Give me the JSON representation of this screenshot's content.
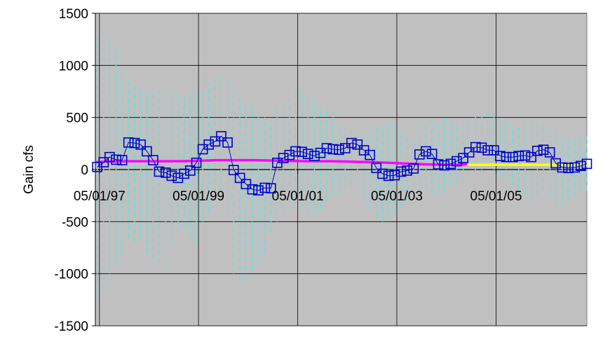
{
  "chart_data": {
    "type": "line",
    "title": "",
    "xlabel": "",
    "ylabel": "Gain cfs",
    "ylim": [
      -1500,
      1500
    ],
    "yticks": [
      1500,
      1000,
      500,
      0,
      -500,
      -1000,
      -1500
    ],
    "xlim": [
      "1997-04-01",
      "2007-03-01"
    ],
    "xticks": [
      {
        "date": "1997-05-01",
        "label": "05/01/97"
      },
      {
        "date": "1999-05-01",
        "label": "05/01/99"
      },
      {
        "date": "2001-05-01",
        "label": "05/01/01"
      },
      {
        "date": "2003-05-01",
        "label": "05/01/03"
      },
      {
        "date": "2005-05-01",
        "label": "05/01/05"
      }
    ],
    "grid": true,
    "plot_background": "#c0c0c0",
    "series": [
      {
        "type": "markers",
        "marker": "square",
        "color": "#0000cc",
        "points": [
          [
            "1997-04-15",
            25
          ],
          [
            "1997-06-01",
            70
          ],
          [
            "1997-07-15",
            120
          ],
          [
            "1997-09-01",
            95
          ],
          [
            "1997-10-15",
            90
          ],
          [
            "1997-12-01",
            260
          ],
          [
            "1998-01-15",
            255
          ],
          [
            "1998-03-01",
            240
          ],
          [
            "1998-04-15",
            175
          ],
          [
            "1998-06-01",
            90
          ],
          [
            "1998-07-15",
            -20
          ],
          [
            "1998-09-01",
            -30
          ],
          [
            "1998-10-15",
            -60
          ],
          [
            "1998-12-01",
            -80
          ],
          [
            "1999-01-15",
            -40
          ],
          [
            "1999-03-01",
            -10
          ],
          [
            "1999-04-15",
            65
          ],
          [
            "1999-06-01",
            195
          ],
          [
            "1999-07-15",
            240
          ],
          [
            "1999-09-01",
            270
          ],
          [
            "1999-10-15",
            320
          ],
          [
            "1999-12-01",
            260
          ],
          [
            "2000-01-15",
            -5
          ],
          [
            "2000-03-01",
            -80
          ],
          [
            "2000-04-15",
            -140
          ],
          [
            "2000-06-01",
            -190
          ],
          [
            "2000-07-15",
            -200
          ],
          [
            "2000-09-01",
            -175
          ],
          [
            "2000-10-15",
            -180
          ],
          [
            "2000-12-01",
            65
          ],
          [
            "2001-01-15",
            110
          ],
          [
            "2001-03-01",
            140
          ],
          [
            "2001-04-15",
            175
          ],
          [
            "2001-06-01",
            170
          ],
          [
            "2001-07-15",
            150
          ],
          [
            "2001-09-01",
            130
          ],
          [
            "2001-10-15",
            160
          ],
          [
            "2001-12-01",
            205
          ],
          [
            "2002-01-15",
            195
          ],
          [
            "2002-03-01",
            190
          ],
          [
            "2002-04-15",
            205
          ],
          [
            "2002-06-01",
            255
          ],
          [
            "2002-07-15",
            240
          ],
          [
            "2002-09-01",
            185
          ],
          [
            "2002-10-15",
            140
          ],
          [
            "2002-12-01",
            15
          ],
          [
            "2003-01-15",
            -40
          ],
          [
            "2003-03-01",
            -60
          ],
          [
            "2003-04-15",
            -55
          ],
          [
            "2003-06-01",
            -20
          ],
          [
            "2003-07-15",
            -10
          ],
          [
            "2003-09-01",
            10
          ],
          [
            "2003-10-15",
            145
          ],
          [
            "2003-12-01",
            175
          ],
          [
            "2004-01-15",
            150
          ],
          [
            "2004-03-01",
            50
          ],
          [
            "2004-04-15",
            40
          ],
          [
            "2004-06-01",
            55
          ],
          [
            "2004-07-15",
            80
          ],
          [
            "2004-09-01",
            110
          ],
          [
            "2004-10-15",
            165
          ],
          [
            "2004-12-01",
            215
          ],
          [
            "2005-01-15",
            210
          ],
          [
            "2005-03-01",
            185
          ],
          [
            "2005-04-15",
            185
          ],
          [
            "2005-06-01",
            130
          ],
          [
            "2005-07-15",
            120
          ],
          [
            "2005-09-01",
            120
          ],
          [
            "2005-10-15",
            130
          ],
          [
            "2005-12-01",
            135
          ],
          [
            "2006-01-15",
            120
          ],
          [
            "2006-03-01",
            180
          ],
          [
            "2006-04-15",
            190
          ],
          [
            "2006-06-01",
            165
          ],
          [
            "2006-07-15",
            60
          ],
          [
            "2006-09-01",
            20
          ],
          [
            "2006-10-15",
            15
          ],
          [
            "2006-12-01",
            20
          ],
          [
            "2007-01-15",
            35
          ],
          [
            "2007-03-01",
            55
          ]
        ]
      },
      {
        "type": "line",
        "color": "#ff00ff",
        "points": [
          [
            "1997-04-01",
            70
          ],
          [
            "1997-07-01",
            78
          ],
          [
            "1998-01-01",
            80
          ],
          [
            "1998-06-01",
            80
          ],
          [
            "1999-01-01",
            80
          ],
          [
            "1999-06-01",
            85
          ],
          [
            "1999-09-01",
            90
          ],
          [
            "2000-06-01",
            90
          ],
          [
            "2001-01-01",
            85
          ],
          [
            "2001-07-01",
            80
          ],
          [
            "2002-01-01",
            80
          ],
          [
            "2002-06-01",
            75
          ],
          [
            "2002-12-01",
            70
          ],
          [
            "2003-06-01",
            60
          ],
          [
            "2003-12-01",
            50
          ],
          [
            "2004-06-01",
            45
          ],
          [
            "2004-10-01",
            50
          ]
        ]
      },
      {
        "type": "line",
        "color": "#ffff00",
        "points": [
          [
            "2004-10-01",
            45
          ],
          [
            "2007-03-01",
            45
          ]
        ]
      },
      {
        "type": "error_bars",
        "style": "dashed",
        "color": "#66e0e0",
        "bars": [
          [
            "1997-04-15",
            -1250,
            1300
          ],
          [
            "1997-06-01",
            -1150,
            1350
          ],
          [
            "1997-07-15",
            -1000,
            1250
          ],
          [
            "1997-09-01",
            -900,
            1150
          ],
          [
            "1997-10-15",
            -800,
            950
          ],
          [
            "1997-12-01",
            -650,
            880
          ],
          [
            "1998-01-15",
            -700,
            820
          ],
          [
            "1998-03-01",
            -650,
            800
          ],
          [
            "1998-04-15",
            -800,
            760
          ],
          [
            "1998-06-01",
            -850,
            760
          ],
          [
            "1998-07-15",
            -900,
            770
          ],
          [
            "1998-09-01",
            -930,
            750
          ],
          [
            "1998-10-15",
            -700,
            760
          ],
          [
            "1998-12-01",
            -600,
            720
          ],
          [
            "1999-01-15",
            -550,
            700
          ],
          [
            "1999-03-01",
            -650,
            740
          ],
          [
            "1999-04-15",
            -700,
            760
          ],
          [
            "1999-06-01",
            -500,
            750
          ],
          [
            "1999-07-15",
            -400,
            830
          ],
          [
            "1999-09-01",
            -300,
            880
          ],
          [
            "1999-10-15",
            -200,
            920
          ],
          [
            "1999-12-01",
            -400,
            860
          ],
          [
            "2000-01-15",
            -1000,
            780
          ],
          [
            "2000-03-01",
            -1050,
            700
          ],
          [
            "2000-04-15",
            -1050,
            650
          ],
          [
            "2000-06-01",
            -950,
            620
          ],
          [
            "2000-07-15",
            -900,
            560
          ],
          [
            "2000-09-01",
            -800,
            500
          ],
          [
            "2000-10-15",
            -600,
            460
          ],
          [
            "2000-12-01",
            -500,
            600
          ],
          [
            "2001-01-15",
            -450,
            640
          ],
          [
            "2001-03-01",
            -400,
            680
          ],
          [
            "2001-04-15",
            -350,
            740
          ],
          [
            "2001-06-01",
            -380,
            770
          ],
          [
            "2001-07-15",
            -400,
            740
          ],
          [
            "2001-09-01",
            -420,
            700
          ],
          [
            "2001-10-15",
            -380,
            620
          ],
          [
            "2001-12-01",
            -300,
            560
          ],
          [
            "2002-01-15",
            -250,
            500
          ],
          [
            "2002-03-01",
            -230,
            440
          ],
          [
            "2002-04-15",
            -180,
            420
          ],
          [
            "2002-06-01",
            -150,
            400
          ],
          [
            "2002-07-15",
            -200,
            380
          ],
          [
            "2002-09-01",
            -300,
            360
          ],
          [
            "2002-10-15",
            -400,
            380
          ],
          [
            "2002-12-01",
            -450,
            400
          ],
          [
            "2003-01-15",
            -500,
            420
          ],
          [
            "2003-03-01",
            -480,
            440
          ],
          [
            "2003-04-15",
            -420,
            420
          ],
          [
            "2003-06-01",
            -360,
            380
          ],
          [
            "2003-07-15",
            -300,
            340
          ],
          [
            "2003-09-01",
            -250,
            300
          ],
          [
            "2003-10-15",
            -200,
            380
          ],
          [
            "2003-12-01",
            -180,
            430
          ],
          [
            "2004-01-15",
            -220,
            460
          ],
          [
            "2004-03-01",
            -250,
            480
          ],
          [
            "2004-04-15",
            -200,
            500
          ],
          [
            "2004-06-01",
            -150,
            480
          ],
          [
            "2004-07-15",
            -120,
            450
          ],
          [
            "2004-09-01",
            -100,
            420
          ],
          [
            "2004-10-15",
            -60,
            480
          ],
          [
            "2004-12-01",
            -20,
            520
          ],
          [
            "2005-01-15",
            0,
            560
          ],
          [
            "2005-03-01",
            20,
            580
          ],
          [
            "2005-04-15",
            0,
            560
          ],
          [
            "2005-06-01",
            -50,
            520
          ],
          [
            "2005-07-15",
            -80,
            460
          ],
          [
            "2005-09-01",
            -150,
            420
          ],
          [
            "2005-10-15",
            -200,
            400
          ],
          [
            "2005-12-01",
            -250,
            440
          ],
          [
            "2006-01-15",
            -300,
            460
          ],
          [
            "2006-03-01",
            -250,
            440
          ],
          [
            "2006-04-15",
            -200,
            420
          ],
          [
            "2006-06-01",
            -260,
            400
          ],
          [
            "2006-07-15",
            -320,
            360
          ],
          [
            "2006-09-01",
            -350,
            330
          ],
          [
            "2006-10-15",
            -300,
            300
          ],
          [
            "2006-12-01",
            -250,
            280
          ],
          [
            "2007-01-15",
            -220,
            300
          ],
          [
            "2007-03-01",
            -200,
            320
          ]
        ]
      }
    ]
  }
}
